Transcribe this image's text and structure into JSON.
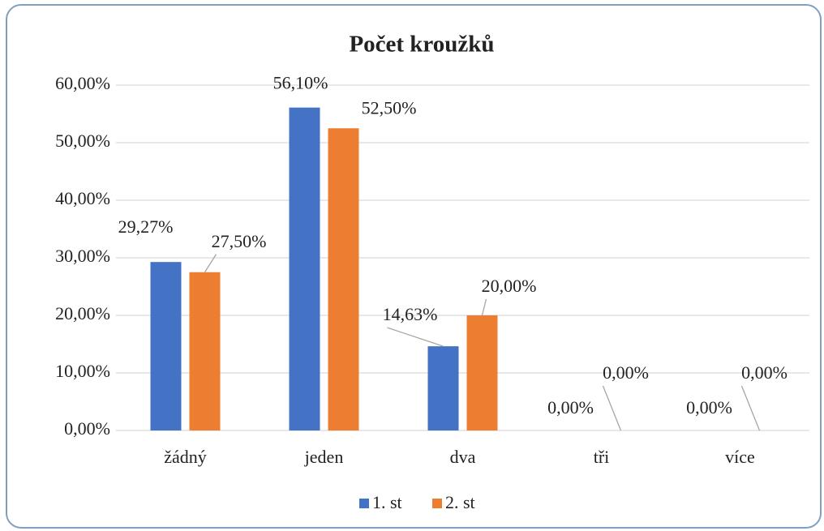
{
  "chart_data": {
    "type": "bar",
    "title": "Počet kroužků",
    "categories": [
      "žádný",
      "jeden",
      "dva",
      "tři",
      "více"
    ],
    "series": [
      {
        "name": "1. st",
        "color": "#4472c4",
        "values": [
          29.27,
          56.1,
          14.63,
          0,
          0
        ],
        "value_labels": [
          "29,27%",
          "56,10%",
          "14,63%",
          "0,00%",
          "0,00%"
        ]
      },
      {
        "name": "2. st",
        "color": "#ed7d31",
        "values": [
          27.5,
          52.5,
          20.0,
          0,
          0
        ],
        "value_labels": [
          "27,50%",
          "52,50%",
          "20,00%",
          "0,00%",
          "0,00%"
        ]
      }
    ],
    "ylim": [
      0,
      60
    ],
    "yticks": [
      {
        "value": 0,
        "label": "0,00%"
      },
      {
        "value": 10,
        "label": "10,00%"
      },
      {
        "value": 20,
        "label": "20,00%"
      },
      {
        "value": 30,
        "label": "30,00%"
      },
      {
        "value": 40,
        "label": "40,00%"
      },
      {
        "value": 50,
        "label": "50,00%"
      },
      {
        "value": 60,
        "label": "60,00%"
      }
    ],
    "grid": true,
    "legend": "bottom"
  }
}
